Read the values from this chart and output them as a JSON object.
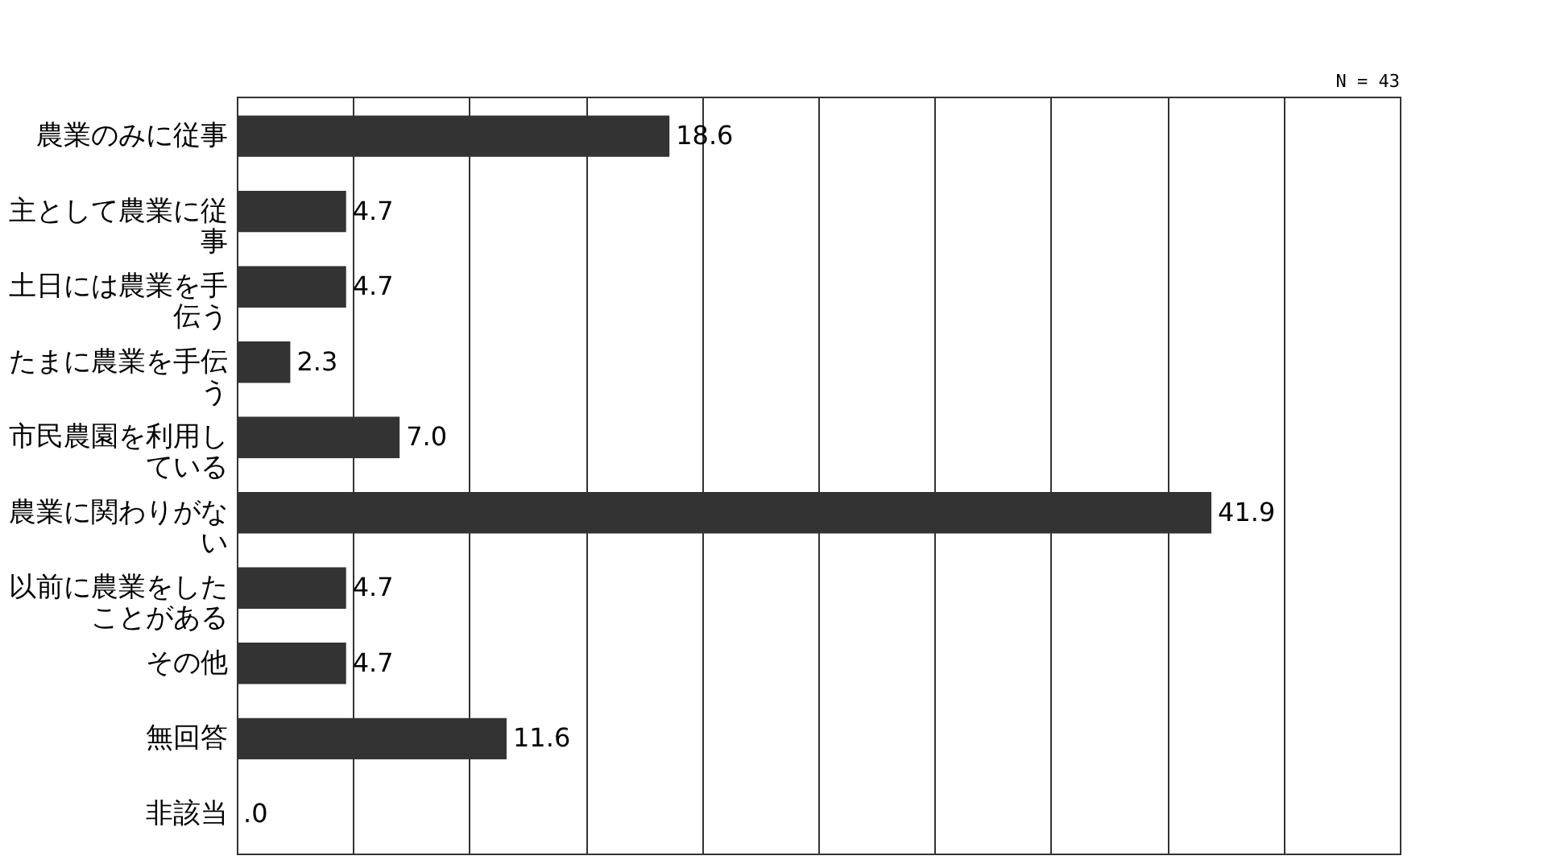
{
  "chart_data": {
    "type": "bar",
    "orientation": "horizontal",
    "categories": [
      "農業のみに従事",
      "主として農業に従事",
      "土日には農業を手伝う",
      "たまに農業を手伝う",
      "市民農園を利用している",
      "農業に関わりがない",
      "以前に農業をしたことがある",
      "その他",
      "無回答",
      "非該当"
    ],
    "values": [
      18.6,
      4.7,
      4.7,
      2.3,
      7.0,
      41.9,
      4.7,
      4.7,
      11.6,
      0
    ],
    "value_labels": [
      "18.6",
      "4.7",
      "4.7",
      "2.3",
      "7.0",
      "41.9",
      "4.7",
      "4.7",
      "11.6",
      ".0"
    ],
    "color": "#333333",
    "xlim": [
      0,
      50
    ],
    "xticks": [
      {
        "value": 0,
        "label": null
      },
      {
        "value": 5,
        "label": null
      },
      {
        "value": 10,
        "label": null
      },
      {
        "value": 15,
        "label": null
      },
      {
        "value": 20,
        "label": null
      },
      {
        "value": 25,
        "label": null
      },
      {
        "value": 30,
        "label": null
      },
      {
        "value": 35,
        "label": null
      },
      {
        "value": 40,
        "label": null
      },
      {
        "value": 45,
        "label": null
      },
      {
        "value": 50,
        "label": null
      }
    ],
    "grid": "x",
    "tick_labels": "y",
    "annotations": [
      "N = 43"
    ]
  }
}
